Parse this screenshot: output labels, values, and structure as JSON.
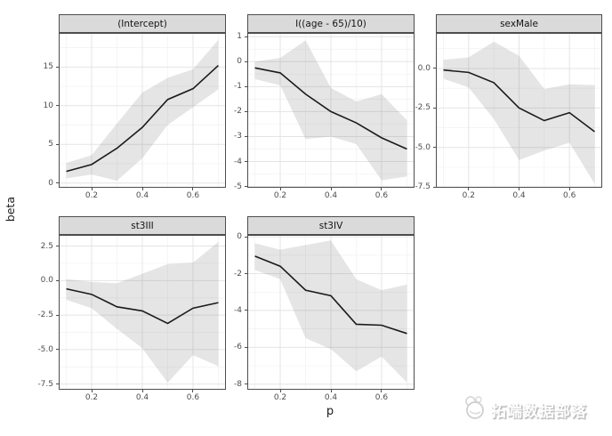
{
  "axes": {
    "x_title": "p",
    "y_title": "beta"
  },
  "watermark": {
    "text": "拓端数据部落",
    "logo": "rabbit-logo"
  },
  "colors": {
    "background": "#ffffff",
    "strip_bg": "#dadada",
    "strip_border": "#4d4d4d",
    "panel_border": "#4d4d4d",
    "grid_major": "#e4e4e4",
    "grid_minor": "#f1f1f1",
    "ribbon": "rgba(127,127,127,0.20)",
    "line": "#1b1b1b",
    "tick_text": "#4d4d4d"
  },
  "chart_data": {
    "type": "line",
    "subtype": "faceted line with confidence ribbon (ggplot2 facet_wrap, scales free_y)",
    "xlabel": "p",
    "ylabel": "beta",
    "x": [
      0.1,
      0.2,
      0.3,
      0.4,
      0.5,
      0.6,
      0.7
    ],
    "xlim": [
      0.07,
      0.73
    ],
    "x_ticks": [
      0.2,
      0.4,
      0.6
    ],
    "x_tick_labels": [
      "0.2",
      "0.4",
      "0.6"
    ],
    "x_ticks_minor": [
      0.1,
      0.3,
      0.5,
      0.7
    ],
    "panels": [
      {
        "title": "(Intercept)",
        "ylim": [
          -0.61,
          19.41
        ],
        "y_ticks": [
          0,
          5,
          10,
          15
        ],
        "y_tick_labels": [
          "0",
          "5",
          "10",
          "15"
        ],
        "line": [
          1.5,
          2.4,
          4.5,
          7.2,
          10.8,
          12.2,
          15.2
        ],
        "lower": [
          0.6,
          1.1,
          0.3,
          3.2,
          7.5,
          9.8,
          12.1
        ],
        "upper": [
          2.6,
          3.6,
          7.7,
          11.7,
          13.6,
          14.7,
          18.5
        ]
      },
      {
        "title": "I((age - 65)/10)",
        "ylim": [
          -5.05,
          1.15
        ],
        "y_ticks": [
          -5,
          -4,
          -3,
          -2,
          -1,
          0,
          1
        ],
        "y_tick_labels": [
          "-5",
          "-4",
          "-3",
          "-2",
          "-1",
          "0",
          "1"
        ],
        "line": [
          -0.25,
          -0.45,
          -1.3,
          -2.0,
          -2.45,
          -3.05,
          -3.5
        ],
        "lower": [
          -0.7,
          -0.95,
          -3.1,
          -3.0,
          -3.3,
          -4.75,
          -4.6
        ],
        "upper": [
          0.0,
          0.15,
          0.85,
          -1.05,
          -1.6,
          -1.3,
          -2.35
        ]
      },
      {
        "title": "sexMale",
        "ylim": [
          -7.55,
          2.25
        ],
        "y_ticks": [
          -7.5,
          -5.0,
          -2.5,
          0.0
        ],
        "y_tick_labels": [
          "-7.5",
          "-5.0",
          "-2.5",
          "0.0"
        ],
        "line": [
          -0.1,
          -0.25,
          -0.9,
          -2.5,
          -3.3,
          -2.8,
          -4.0
        ],
        "lower": [
          -0.65,
          -1.2,
          -3.2,
          -5.8,
          -5.2,
          -4.7,
          -7.3
        ],
        "upper": [
          0.55,
          0.7,
          1.7,
          0.8,
          -1.3,
          -1.0,
          -1.05
        ]
      },
      {
        "title": "st3III",
        "ylim": [
          -7.91,
          3.31
        ],
        "y_ticks": [
          -7.5,
          -5.0,
          -2.5,
          0.0,
          2.5
        ],
        "y_tick_labels": [
          "-7.5",
          "-5.0",
          "-2.5",
          "0.0",
          "2.5"
        ],
        "line": [
          -0.6,
          -1.0,
          -1.9,
          -2.2,
          -3.1,
          -2.0,
          -1.6
        ],
        "lower": [
          -1.4,
          -2.0,
          -3.5,
          -4.9,
          -7.4,
          -5.4,
          -6.2
        ],
        "upper": [
          0.1,
          -0.1,
          -0.2,
          0.5,
          1.2,
          1.3,
          2.8
        ]
      },
      {
        "title": "st3IV",
        "ylim": [
          -8.3,
          0.1
        ],
        "y_ticks": [
          -8,
          -6,
          -4,
          -2,
          0
        ],
        "y_tick_labels": [
          "-8",
          "-6",
          "-4",
          "-2",
          "0"
        ],
        "line": [
          -1.05,
          -1.6,
          -2.9,
          -3.2,
          -4.75,
          -4.8,
          -5.25
        ],
        "lower": [
          -1.8,
          -2.3,
          -5.5,
          -6.1,
          -7.3,
          -6.5,
          -7.9
        ],
        "upper": [
          -0.35,
          -0.7,
          -0.45,
          -0.2,
          -2.3,
          -2.9,
          -2.6
        ]
      }
    ]
  }
}
